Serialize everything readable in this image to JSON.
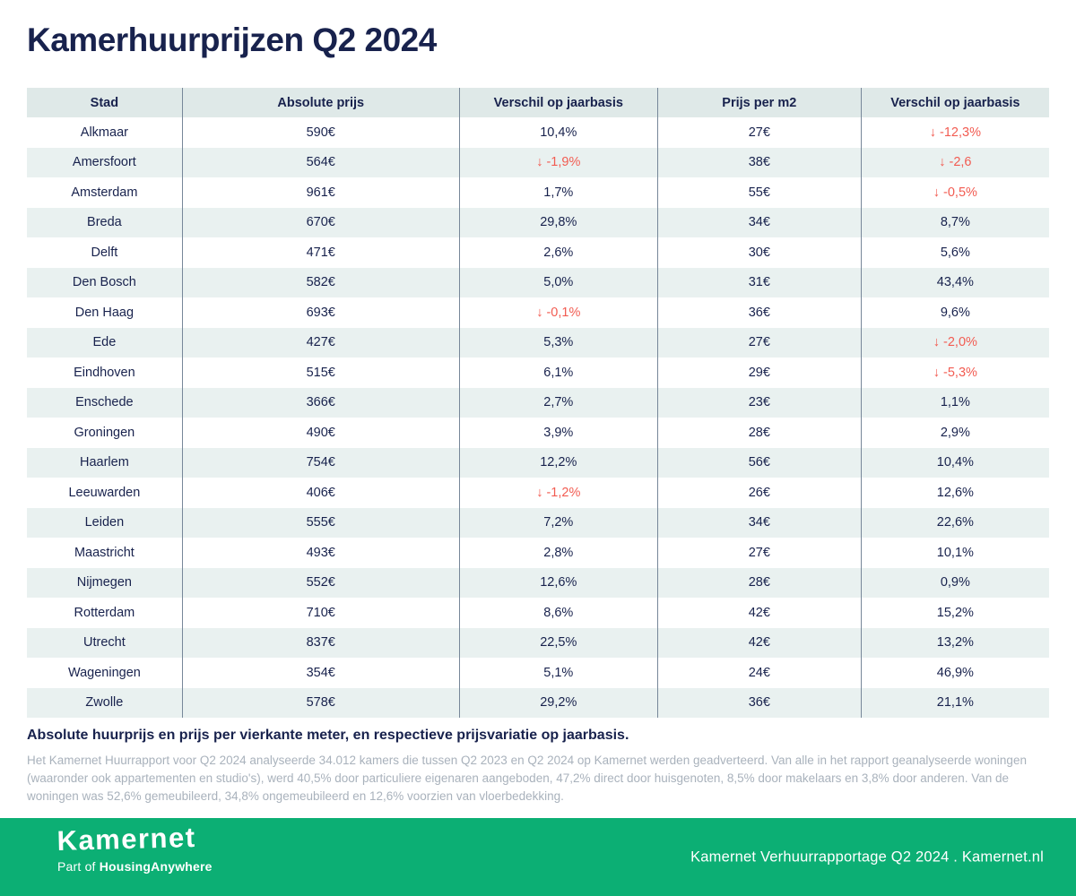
{
  "title": "Kamerhuurprijzen Q2 2024",
  "colors": {
    "navy": "#18224d",
    "negative": "#f25c52",
    "brand-green": "#0caf74",
    "header-bg": "#dfe9e8",
    "stripe-bg": "#e9f1f0",
    "divider": "#778799",
    "muted": "#a9b2bc"
  },
  "chart_data": {
    "type": "table",
    "title": "Kamerhuurprijzen Q2 2024",
    "columns": [
      "Stad",
      "Absolute prijs",
      "Verschil op jaarbasis",
      "Prijs per m2",
      "Verschil op jaarbasis"
    ],
    "rows": [
      {
        "cells": [
          {
            "text": "Alkmaar"
          },
          {
            "text": "590€"
          },
          {
            "text": "10,4%"
          },
          {
            "text": "27€"
          },
          {
            "text": "↓ -12,3%",
            "negative": true
          }
        ]
      },
      {
        "cells": [
          {
            "text": "Amersfoort"
          },
          {
            "text": "564€"
          },
          {
            "text": "↓ -1,9%",
            "negative": true
          },
          {
            "text": "38€"
          },
          {
            "text": "↓ -2,6",
            "negative": true
          }
        ]
      },
      {
        "cells": [
          {
            "text": "Amsterdam"
          },
          {
            "text": "961€"
          },
          {
            "text": "1,7%"
          },
          {
            "text": "55€"
          },
          {
            "text": "↓ -0,5%",
            "negative": true
          }
        ]
      },
      {
        "cells": [
          {
            "text": "Breda"
          },
          {
            "text": "670€"
          },
          {
            "text": "29,8%"
          },
          {
            "text": "34€"
          },
          {
            "text": "8,7%"
          }
        ]
      },
      {
        "cells": [
          {
            "text": "Delft"
          },
          {
            "text": "471€"
          },
          {
            "text": "2,6%"
          },
          {
            "text": "30€"
          },
          {
            "text": "5,6%"
          }
        ]
      },
      {
        "cells": [
          {
            "text": "Den Bosch"
          },
          {
            "text": "582€"
          },
          {
            "text": "5,0%"
          },
          {
            "text": "31€"
          },
          {
            "text": "43,4%"
          }
        ]
      },
      {
        "cells": [
          {
            "text": "Den Haag"
          },
          {
            "text": "693€"
          },
          {
            "text": "↓ -0,1%",
            "negative": true
          },
          {
            "text": "36€"
          },
          {
            "text": "9,6%"
          }
        ]
      },
      {
        "cells": [
          {
            "text": "Ede"
          },
          {
            "text": "427€"
          },
          {
            "text": "5,3%"
          },
          {
            "text": "27€"
          },
          {
            "text": "↓ -2,0%",
            "negative": true
          }
        ]
      },
      {
        "cells": [
          {
            "text": "Eindhoven"
          },
          {
            "text": "515€"
          },
          {
            "text": "6,1%"
          },
          {
            "text": "29€"
          },
          {
            "text": "↓ -5,3%",
            "negative": true
          }
        ]
      },
      {
        "cells": [
          {
            "text": "Enschede"
          },
          {
            "text": "366€"
          },
          {
            "text": "2,7%"
          },
          {
            "text": "23€"
          },
          {
            "text": "1,1%"
          }
        ]
      },
      {
        "cells": [
          {
            "text": "Groningen"
          },
          {
            "text": "490€"
          },
          {
            "text": "3,9%"
          },
          {
            "text": "28€"
          },
          {
            "text": "2,9%"
          }
        ]
      },
      {
        "cells": [
          {
            "text": "Haarlem"
          },
          {
            "text": "754€"
          },
          {
            "text": "12,2%"
          },
          {
            "text": "56€"
          },
          {
            "text": "10,4%"
          }
        ]
      },
      {
        "cells": [
          {
            "text": "Leeuwarden"
          },
          {
            "text": "406€"
          },
          {
            "text": "↓ -1,2%",
            "negative": true
          },
          {
            "text": "26€"
          },
          {
            "text": "12,6%"
          }
        ]
      },
      {
        "cells": [
          {
            "text": "Leiden"
          },
          {
            "text": "555€"
          },
          {
            "text": "7,2%"
          },
          {
            "text": "34€"
          },
          {
            "text": "22,6%"
          }
        ]
      },
      {
        "cells": [
          {
            "text": "Maastricht"
          },
          {
            "text": "493€"
          },
          {
            "text": "2,8%"
          },
          {
            "text": "27€"
          },
          {
            "text": "10,1%"
          }
        ]
      },
      {
        "cells": [
          {
            "text": "Nijmegen"
          },
          {
            "text": "552€"
          },
          {
            "text": "12,6%"
          },
          {
            "text": "28€"
          },
          {
            "text": "0,9%"
          }
        ]
      },
      {
        "cells": [
          {
            "text": "Rotterdam"
          },
          {
            "text": "710€"
          },
          {
            "text": "8,6%"
          },
          {
            "text": "42€"
          },
          {
            "text": "15,2%"
          }
        ]
      },
      {
        "cells": [
          {
            "text": "Utrecht"
          },
          {
            "text": "837€"
          },
          {
            "text": "22,5%"
          },
          {
            "text": "42€"
          },
          {
            "text": "13,2%"
          }
        ]
      },
      {
        "cells": [
          {
            "text": "Wageningen"
          },
          {
            "text": "354€"
          },
          {
            "text": "5,1%"
          },
          {
            "text": "24€"
          },
          {
            "text": "46,9%"
          }
        ]
      },
      {
        "cells": [
          {
            "text": "Zwolle"
          },
          {
            "text": "578€"
          },
          {
            "text": "29,2%"
          },
          {
            "text": "36€"
          },
          {
            "text": "21,1%"
          }
        ]
      }
    ]
  },
  "footnote": {
    "heading": "Absolute huurprijs en prijs per vierkante meter, en respectieve prijsvariatie op jaarbasis.",
    "body": "Het Kamernet Huurrapport voor Q2 2024 analyseerde 34.012 kamers die tussen Q2 2023 en Q2 2024 op Kamernet werden geadverteerd. Van alle in het rapport geanalyseerde woningen (waaronder ook appartementen en studio's), werd 40,5% door particuliere eigenaren aangeboden, 47,2% direct door huisgenoten, 8,5% door makelaars en 3,8% door anderen. Van de woningen was 52,6% gemeubileerd, 34,8% ongemeubileerd en 12,6% voorzien van vloerbedekking."
  },
  "footer": {
    "logo": "Kamernet",
    "part_of": "Part of",
    "housing_brand": "HousingAnywhere",
    "right_text": "Kamernet Verhuurrapportage Q2 2024 . Kamernet.nl"
  }
}
